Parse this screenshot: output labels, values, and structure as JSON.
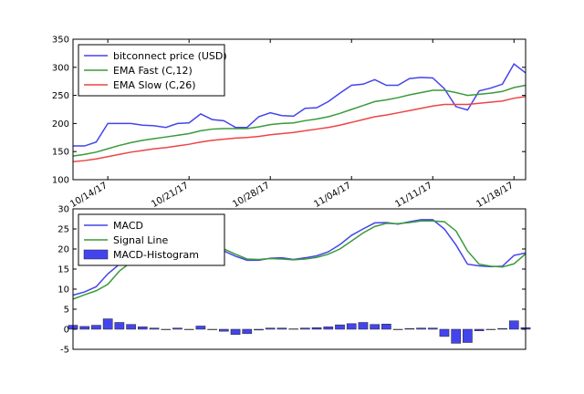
{
  "chart_data": [
    {
      "type": "line",
      "title": "",
      "xlabel": "",
      "ylabel": "",
      "ylim": [
        100,
        350
      ],
      "yticks": [
        100,
        150,
        200,
        250,
        300,
        350
      ],
      "xlim": [
        0,
        39
      ],
      "xticks": [
        {
          "index": 3,
          "label": "10/14/17"
        },
        {
          "index": 10,
          "label": "10/21/17"
        },
        {
          "index": 17,
          "label": "10/28/17"
        },
        {
          "index": 24,
          "label": "11/04/17"
        },
        {
          "index": 31,
          "label": "11/11/17"
        },
        {
          "index": 38,
          "label": "11/18/17"
        }
      ],
      "legend": "top-left",
      "series": [
        {
          "name": "bitconnect price (USD)",
          "color": "#4444ee",
          "values": [
            160,
            160,
            167,
            200,
            200,
            200,
            197,
            196,
            193,
            200,
            201,
            217,
            207,
            205,
            193,
            193,
            212,
            219,
            214,
            213,
            227,
            228,
            239,
            254,
            268,
            270,
            278,
            268,
            268,
            280,
            282,
            281,
            262,
            230,
            224,
            258,
            263,
            270,
            306,
            290
          ]
        },
        {
          "name": "EMA Fast (C,12)",
          "color": "#3a9a3a",
          "values": [
            142,
            145,
            149,
            155,
            161,
            166,
            170,
            173,
            176,
            179,
            182,
            187,
            190,
            191,
            191,
            191,
            194,
            198,
            200,
            201,
            205,
            208,
            212,
            218,
            225,
            232,
            239,
            242,
            246,
            251,
            255,
            259,
            259,
            255,
            250,
            252,
            254,
            257,
            264,
            268
          ]
        },
        {
          "name": "EMA Slow (C,26)",
          "color": "#ee4444",
          "values": [
            132,
            134,
            137,
            141,
            145,
            149,
            152,
            155,
            157,
            160,
            163,
            167,
            170,
            172,
            174,
            175,
            177,
            180,
            182,
            184,
            187,
            190,
            193,
            197,
            202,
            207,
            212,
            215,
            219,
            223,
            227,
            231,
            234,
            234,
            234,
            236,
            238,
            240,
            245,
            248
          ]
        }
      ]
    },
    {
      "type": "line",
      "title": "",
      "xlabel": "",
      "ylabel": "",
      "ylim": [
        -5,
        30
      ],
      "yticks": [
        -5,
        0,
        5,
        10,
        15,
        20,
        25,
        30
      ],
      "xlim": [
        0,
        39
      ],
      "legend": "top-left",
      "series": [
        {
          "name": "MACD",
          "color": "#4444ee",
          "values": [
            8.5,
            9.3,
            10.6,
            13.8,
            16.2,
            17.3,
            18.3,
            18.9,
            19.2,
            19.8,
            19.7,
            20.7,
            20.5,
            19.5,
            18.2,
            17.2,
            17.2,
            17.7,
            17.8,
            17.4,
            17.8,
            18.3,
            19.3,
            21.1,
            23.4,
            25.0,
            26.5,
            26.6,
            26.2,
            26.8,
            27.3,
            27.3,
            25.0,
            21.0,
            16.2,
            15.8,
            15.6,
            15.7,
            18.4,
            19.0
          ]
        },
        {
          "name": "Signal Line",
          "color": "#3a9a3a",
          "values": [
            7.5,
            8.6,
            9.6,
            11.2,
            14.5,
            16.7,
            18.1,
            18.9,
            19.3,
            19.5,
            19.8,
            20.5,
            20.6,
            20.0,
            18.7,
            17.5,
            17.4,
            17.6,
            17.5,
            17.3,
            17.5,
            17.9,
            18.7,
            20.0,
            22.0,
            24.0,
            25.6,
            26.4,
            26.3,
            26.6,
            27.0,
            27.0,
            26.8,
            24.5,
            19.5,
            16.2,
            15.7,
            15.5,
            16.3,
            18.8
          ]
        },
        {
          "name": "MACD-Histogram",
          "color": "#4444ee",
          "kind": "bar",
          "values": [
            1.0,
            0.7,
            1.0,
            2.6,
            1.7,
            1.2,
            0.6,
            0.3,
            -0.1,
            0.3,
            0.0,
            0.8,
            -0.1,
            -0.5,
            -1.3,
            -1.1,
            -0.2,
            0.3,
            0.3,
            0.1,
            0.3,
            0.4,
            0.6,
            1.1,
            1.4,
            1.7,
            1.2,
            1.3,
            -0.1,
            0.2,
            0.3,
            0.3,
            -1.8,
            -3.5,
            -3.3,
            -0.4,
            -0.1,
            0.2,
            2.1,
            0.4
          ]
        }
      ]
    }
  ]
}
